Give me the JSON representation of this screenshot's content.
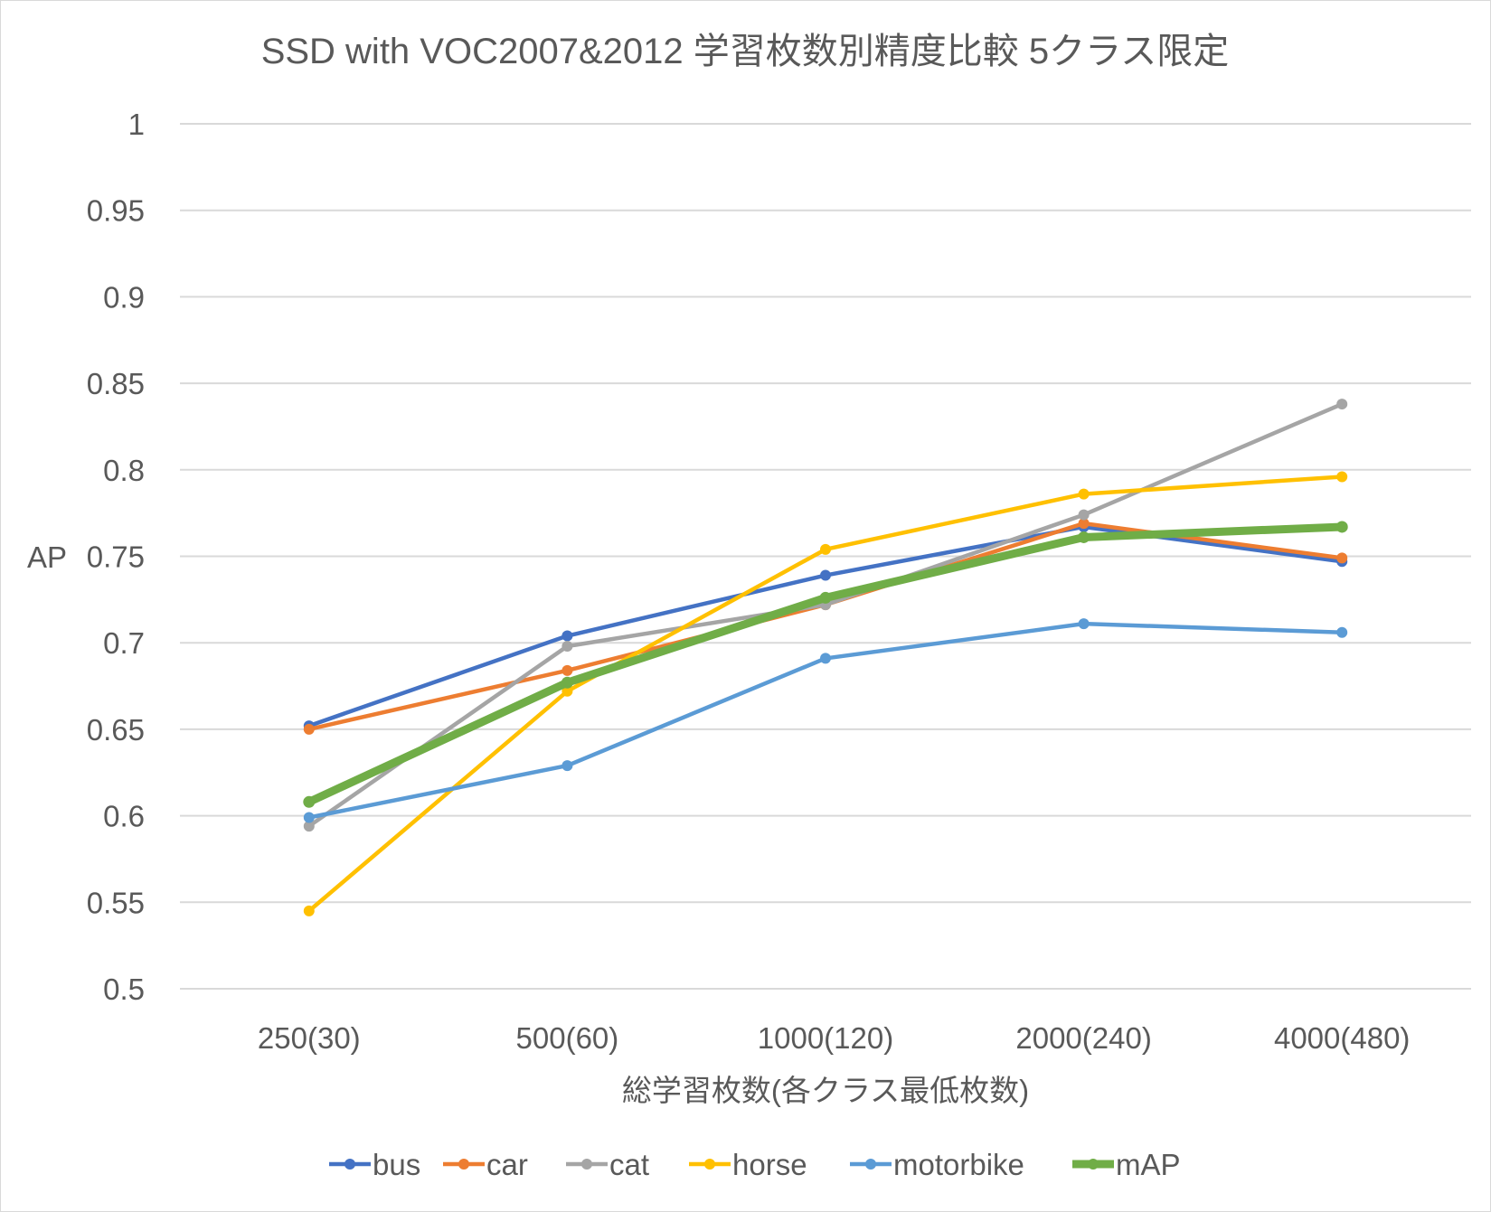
{
  "chart_data": {
    "type": "line",
    "title": "SSD with VOC2007&2012 学習枚数別精度比較 5クラス限定",
    "xlabel": "総学習枚数(各クラス最低枚数)",
    "ylabel": "AP",
    "categories": [
      "250(30)",
      "500(60)",
      "1000(120)",
      "2000(240)",
      "4000(480)"
    ],
    "ylim": [
      0.5,
      1.0
    ],
    "yticks": [
      "1",
      "0.95",
      "0.9",
      "0.85",
      "0.8",
      "0.75",
      "0.7",
      "0.65",
      "0.6",
      "0.55",
      "0.5"
    ],
    "grid": true,
    "legend_position": "bottom",
    "series": [
      {
        "name": "bus",
        "color": "#4472C4",
        "values": [
          0.652,
          0.704,
          0.739,
          0.767,
          0.747
        ]
      },
      {
        "name": "car",
        "color": "#ED7D31",
        "values": [
          0.65,
          0.684,
          0.722,
          0.769,
          0.749
        ]
      },
      {
        "name": "cat",
        "color": "#A5A5A5",
        "values": [
          0.594,
          0.698,
          0.722,
          0.774,
          0.838
        ]
      },
      {
        "name": "horse",
        "color": "#FFC000",
        "values": [
          0.545,
          0.672,
          0.754,
          0.786,
          0.796
        ]
      },
      {
        "name": "motorbike",
        "color": "#5B9BD5",
        "values": [
          0.599,
          0.629,
          0.691,
          0.711,
          0.706
        ]
      },
      {
        "name": "mAP",
        "color": "#70AD47",
        "values": [
          0.608,
          0.677,
          0.726,
          0.761,
          0.767
        ]
      }
    ]
  }
}
